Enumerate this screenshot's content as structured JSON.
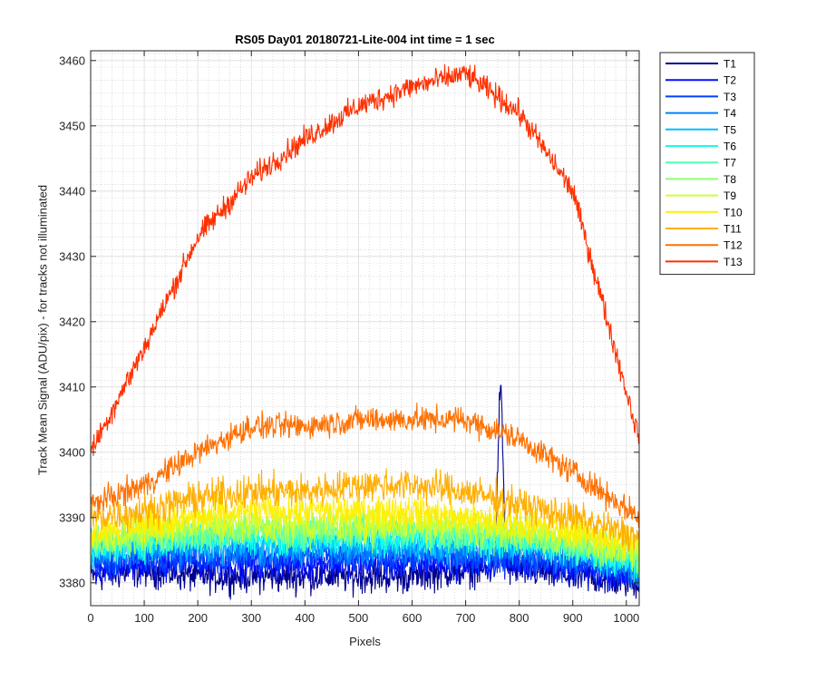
{
  "chart_data": {
    "type": "line",
    "title": "RS05 Day01 20180721-Lite-004 int time = 1 sec",
    "xlabel": "Pixels",
    "ylabel": "Track Mean Signal (ADU/pix) - for tracks not illuminated",
    "xlim": [
      0,
      1024
    ],
    "ylim": [
      3376.5,
      3461.5
    ],
    "xticks": [
      0,
      100,
      200,
      300,
      400,
      500,
      600,
      700,
      800,
      900,
      1000
    ],
    "yticks": [
      3380,
      3390,
      3400,
      3410,
      3420,
      3430,
      3440,
      3450,
      3460
    ],
    "grid": "major and minor",
    "legend_position": "outside-top-right",
    "x": [
      0,
      100,
      200,
      300,
      400,
      500,
      600,
      700,
      800,
      900,
      1024
    ],
    "series": [
      {
        "name": "T1",
        "color": "#00008f",
        "values": [
          3381,
          3382,
          3381,
          3381,
          3381,
          3381,
          3381,
          3382,
          3382,
          3381,
          3380
        ],
        "noise": 1.8
      },
      {
        "name": "T2",
        "color": "#0010ff",
        "values": [
          3382,
          3383,
          3383,
          3383,
          3383,
          3383,
          3383,
          3383,
          3383,
          3382,
          3381
        ],
        "noise": 1.8
      },
      {
        "name": "T3",
        "color": "#0040ff",
        "values": [
          3383,
          3384,
          3384,
          3384,
          3384,
          3384,
          3384,
          3384,
          3384,
          3383,
          3382
        ],
        "noise": 1.8
      },
      {
        "name": "T4",
        "color": "#0080ff",
        "values": [
          3384,
          3385,
          3385,
          3385,
          3385,
          3385,
          3385,
          3385,
          3385,
          3384,
          3382
        ],
        "noise": 1.8
      },
      {
        "name": "T5",
        "color": "#00bfff",
        "values": [
          3385,
          3386,
          3386,
          3386,
          3386,
          3386,
          3386,
          3386,
          3386,
          3385,
          3383
        ],
        "noise": 1.8
      },
      {
        "name": "T6",
        "color": "#10ffef",
        "values": [
          3385,
          3386,
          3387,
          3387,
          3387,
          3387,
          3387,
          3387,
          3386,
          3385,
          3383
        ],
        "noise": 1.8
      },
      {
        "name": "T7",
        "color": "#50ffaf",
        "values": [
          3386,
          3387,
          3387,
          3388,
          3388,
          3388,
          3388,
          3387,
          3387,
          3386,
          3384
        ],
        "noise": 1.8
      },
      {
        "name": "T8",
        "color": "#8fff70",
        "values": [
          3386,
          3387,
          3388,
          3388,
          3388,
          3388,
          3388,
          3388,
          3387,
          3386,
          3384
        ],
        "noise": 1.8
      },
      {
        "name": "T9",
        "color": "#cfff30",
        "values": [
          3387,
          3388,
          3389,
          3389,
          3389,
          3389,
          3389,
          3389,
          3388,
          3387,
          3385
        ],
        "noise": 1.8
      },
      {
        "name": "T10",
        "color": "#ffef00",
        "values": [
          3388,
          3389,
          3390,
          3391,
          3391,
          3391,
          3391,
          3390,
          3389,
          3388,
          3386
        ],
        "noise": 1.8
      },
      {
        "name": "T11",
        "color": "#ffaf00",
        "values": [
          3390,
          3391,
          3393,
          3394,
          3394,
          3395,
          3395,
          3394,
          3392,
          3390,
          3387
        ],
        "noise": 1.8
      },
      {
        "name": "T12",
        "color": "#ff7000",
        "values": [
          3392,
          3395,
          3400,
          3404,
          3404,
          3405,
          3405,
          3405,
          3402,
          3397,
          3390
        ],
        "noise": 1.4
      },
      {
        "name": "T13",
        "color": "#ff3000",
        "values": [
          3400,
          3416,
          3433,
          3442,
          3448,
          3453,
          3456,
          3458,
          3452,
          3440,
          3402
        ],
        "noise": 1.3
      }
    ],
    "spike": {
      "series": "T1",
      "x_center": 765,
      "peak": 3409
    }
  }
}
